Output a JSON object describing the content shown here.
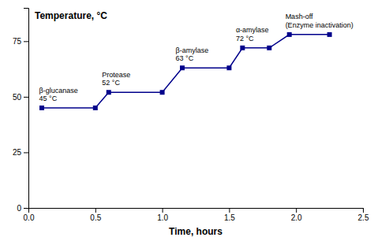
{
  "chart_data": {
    "type": "line",
    "title": "Temperature, °C",
    "xlabel": "Time, hours",
    "x": [
      0.1,
      0.5,
      0.6,
      1.0,
      1.15,
      1.5,
      1.6,
      1.8,
      1.95,
      2.25
    ],
    "values": [
      45,
      45,
      52,
      52,
      63,
      63,
      72,
      72,
      78,
      78
    ],
    "color": "#00008B",
    "marker": "square",
    "xlim": [
      0.0,
      2.5
    ],
    "ylim": [
      0,
      90
    ],
    "xticks": [
      {
        "value": 0.0,
        "label": "0.0"
      },
      0.5,
      {
        "value": 1.0,
        "label": "1.0"
      },
      1.5,
      {
        "value": 2.0,
        "label": "2.0"
      },
      2.5
    ],
    "yticks": [
      0,
      25,
      50,
      75
    ],
    "grid": false,
    "annotations": [
      {
        "text": "β-glucanase\n45 °C",
        "x": 0.08,
        "y": 47.5
      },
      {
        "text": "Protease\n52 °C",
        "x": 0.55,
        "y": 54.5
      },
      {
        "text": "β-amylase\n63 °C",
        "x": 1.1,
        "y": 65.5
      },
      {
        "text": "α-amylase\n72 °C",
        "x": 1.55,
        "y": 74.5
      },
      {
        "text": "Mash-off\n(Enzyme inactivation)",
        "x": 1.92,
        "y": 80.5
      }
    ]
  }
}
